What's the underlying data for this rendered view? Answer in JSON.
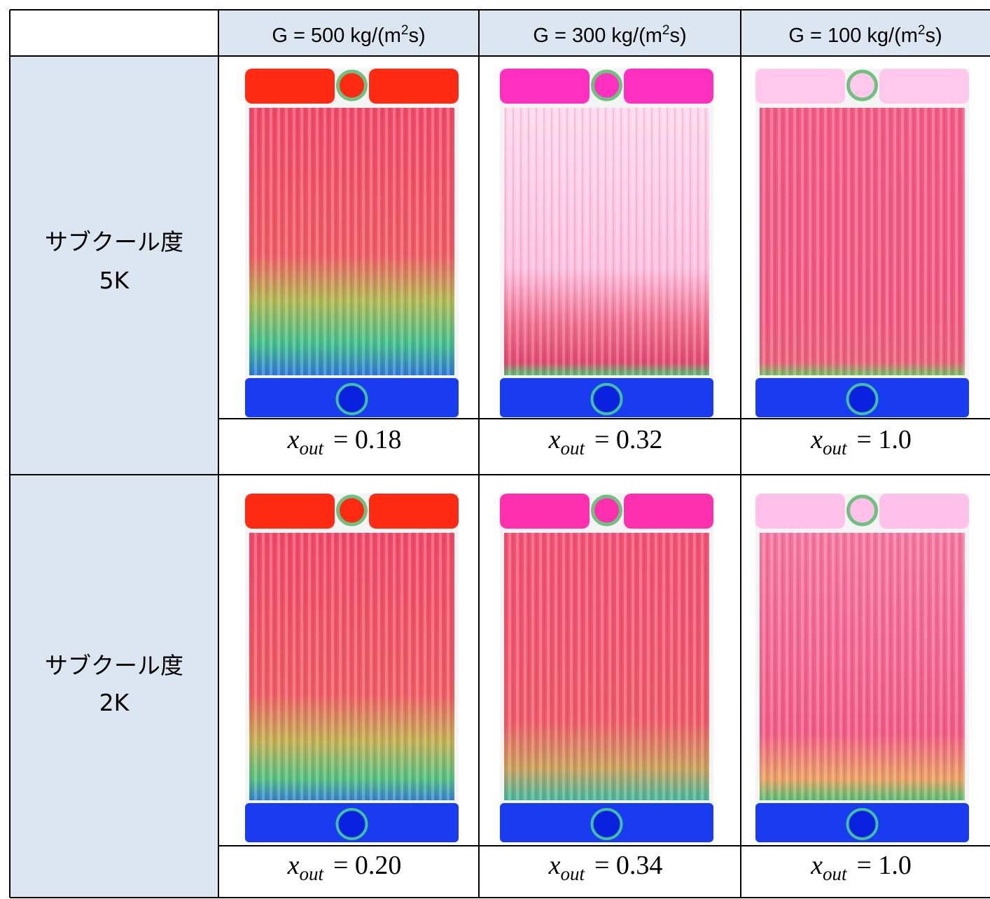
{
  "table": {
    "header": [
      {
        "before": "G = 500 kg/(m",
        "sup": "2",
        "after": "s)"
      },
      {
        "before": "G = 300 kg/(m",
        "sup": "2",
        "after": "s)"
      },
      {
        "before": "G = 100 kg/(m",
        "sup": "2",
        "after": "s)"
      }
    ],
    "rows": [
      {
        "label": [
          "サブクール度",
          "5K"
        ],
        "results": [
          {
            "var": "x",
            "sub": "out",
            "eq": "= 0.18"
          },
          {
            "var": "x",
            "sub": "out",
            "eq": "= 0.32"
          },
          {
            "var": "x",
            "sub": "out",
            "eq": "= 1.0"
          }
        ]
      },
      {
        "label": [
          "サブクール度",
          "2K"
        ],
        "results": [
          {
            "var": "x",
            "sub": "out",
            "eq": "= 0.20"
          },
          {
            "var": "x",
            "sub": "out",
            "eq": "= 0.34"
          },
          {
            "var": "x",
            "sub": "out",
            "eq": "= 1.0"
          }
        ]
      }
    ]
  }
}
